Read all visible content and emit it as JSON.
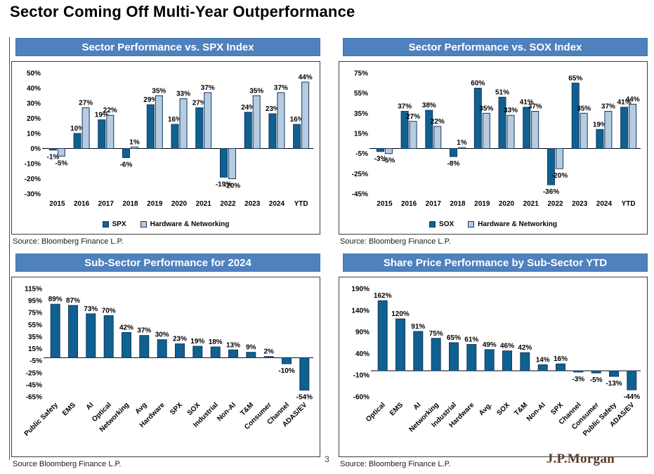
{
  "page": {
    "title": "Sector Coming Off Multi-Year Outperformance"
  },
  "footer": {
    "page_number": "3",
    "brand": "J.P.Morgan"
  },
  "colors": {
    "header_bg": "#4F81BD",
    "dark_bar": "#0E6190",
    "light_bar": "#B5CCE1",
    "bar_border": "#17375E",
    "brand_text": "#5A3A28"
  },
  "sources": {
    "top_left": "Source: Bloomberg Finance L.P.",
    "top_right": "Source: Bloomberg Finance L.P.",
    "bottom_left": "Source Bloomberg Finance L.P.",
    "bottom_right": "Source: Bloomberg Finance L.P."
  },
  "chart_data": [
    {
      "id": "sector-vs-spx",
      "type": "bar",
      "title": "Sector Performance vs. SPX Index",
      "categories": [
        "2015",
        "2016",
        "2017",
        "2018",
        "2019",
        "2020",
        "2021",
        "2022",
        "2023",
        "2024",
        "YTD"
      ],
      "series": [
        {
          "name": "SPX",
          "values": [
            -1,
            10,
            19,
            -6,
            29,
            16,
            27,
            -19,
            24,
            23,
            16
          ]
        },
        {
          "name": "Hardware & Networking",
          "values": [
            -5,
            27,
            22,
            1,
            35,
            33,
            37,
            -20,
            35,
            37,
            44
          ]
        }
      ],
      "ylim": [
        -30,
        50
      ],
      "yticks": [
        50,
        40,
        30,
        20,
        10,
        0,
        -10,
        -20,
        -30
      ],
      "grid": false,
      "legend_position": "bottom"
    },
    {
      "id": "sector-vs-sox",
      "type": "bar",
      "title": "Sector Performance vs. SOX Index",
      "categories": [
        "2015",
        "2016",
        "2017",
        "2018",
        "2019",
        "2020",
        "2021",
        "2022",
        "2023",
        "2024",
        "YTD"
      ],
      "series": [
        {
          "name": "SOX",
          "values": [
            -3,
            37,
            38,
            -8,
            60,
            51,
            41,
            -36,
            65,
            19,
            41
          ]
        },
        {
          "name": "Hardware & Networking",
          "values": [
            -5,
            27,
            22,
            1,
            35,
            33,
            37,
            -20,
            35,
            37,
            44
          ]
        }
      ],
      "ylim": [
        -45,
        75
      ],
      "yticks": [
        75,
        55,
        35,
        15,
        -5,
        -25,
        -45
      ],
      "grid": false,
      "legend_position": "bottom"
    },
    {
      "id": "subsector-2024",
      "type": "bar",
      "title": "Sub-Sector Performance for 2024",
      "categories": [
        "Public Safety",
        "EMS",
        "AI",
        "Optical",
        "Networking",
        "Avg",
        "Hardware",
        "SPX",
        "SOX",
        "Industrial",
        "Non-AI",
        "T&M",
        "Consumer",
        "Channel",
        "ADAS/EV"
      ],
      "values": [
        89,
        87,
        73,
        70,
        42,
        37,
        30,
        23,
        19,
        18,
        13,
        9,
        2,
        -10,
        -54
      ],
      "ylim": [
        -65,
        115
      ],
      "yticks": [
        115,
        95,
        75,
        55,
        35,
        15,
        -5,
        -25,
        -45,
        -65
      ],
      "grid": false,
      "legend_position": "none"
    },
    {
      "id": "subsector-ytd",
      "type": "bar",
      "title": "Share Price Performance by Sub-Sector YTD",
      "categories": [
        "Optical",
        "EMS",
        "AI",
        "Networking",
        "Industrial",
        "Hardware",
        "Avg.",
        "SOX",
        "T&M",
        "Non-AI",
        "SPX",
        "Channel",
        "Consumer",
        "Public Safety",
        "ADAS/EV"
      ],
      "values": [
        162,
        120,
        91,
        75,
        65,
        61,
        49,
        46,
        42,
        14,
        16,
        -3,
        -5,
        -13,
        -44
      ],
      "ylim": [
        -60,
        190
      ],
      "yticks": [
        190,
        140,
        90,
        40,
        -10,
        -60
      ],
      "grid": false,
      "legend_position": "none"
    }
  ]
}
